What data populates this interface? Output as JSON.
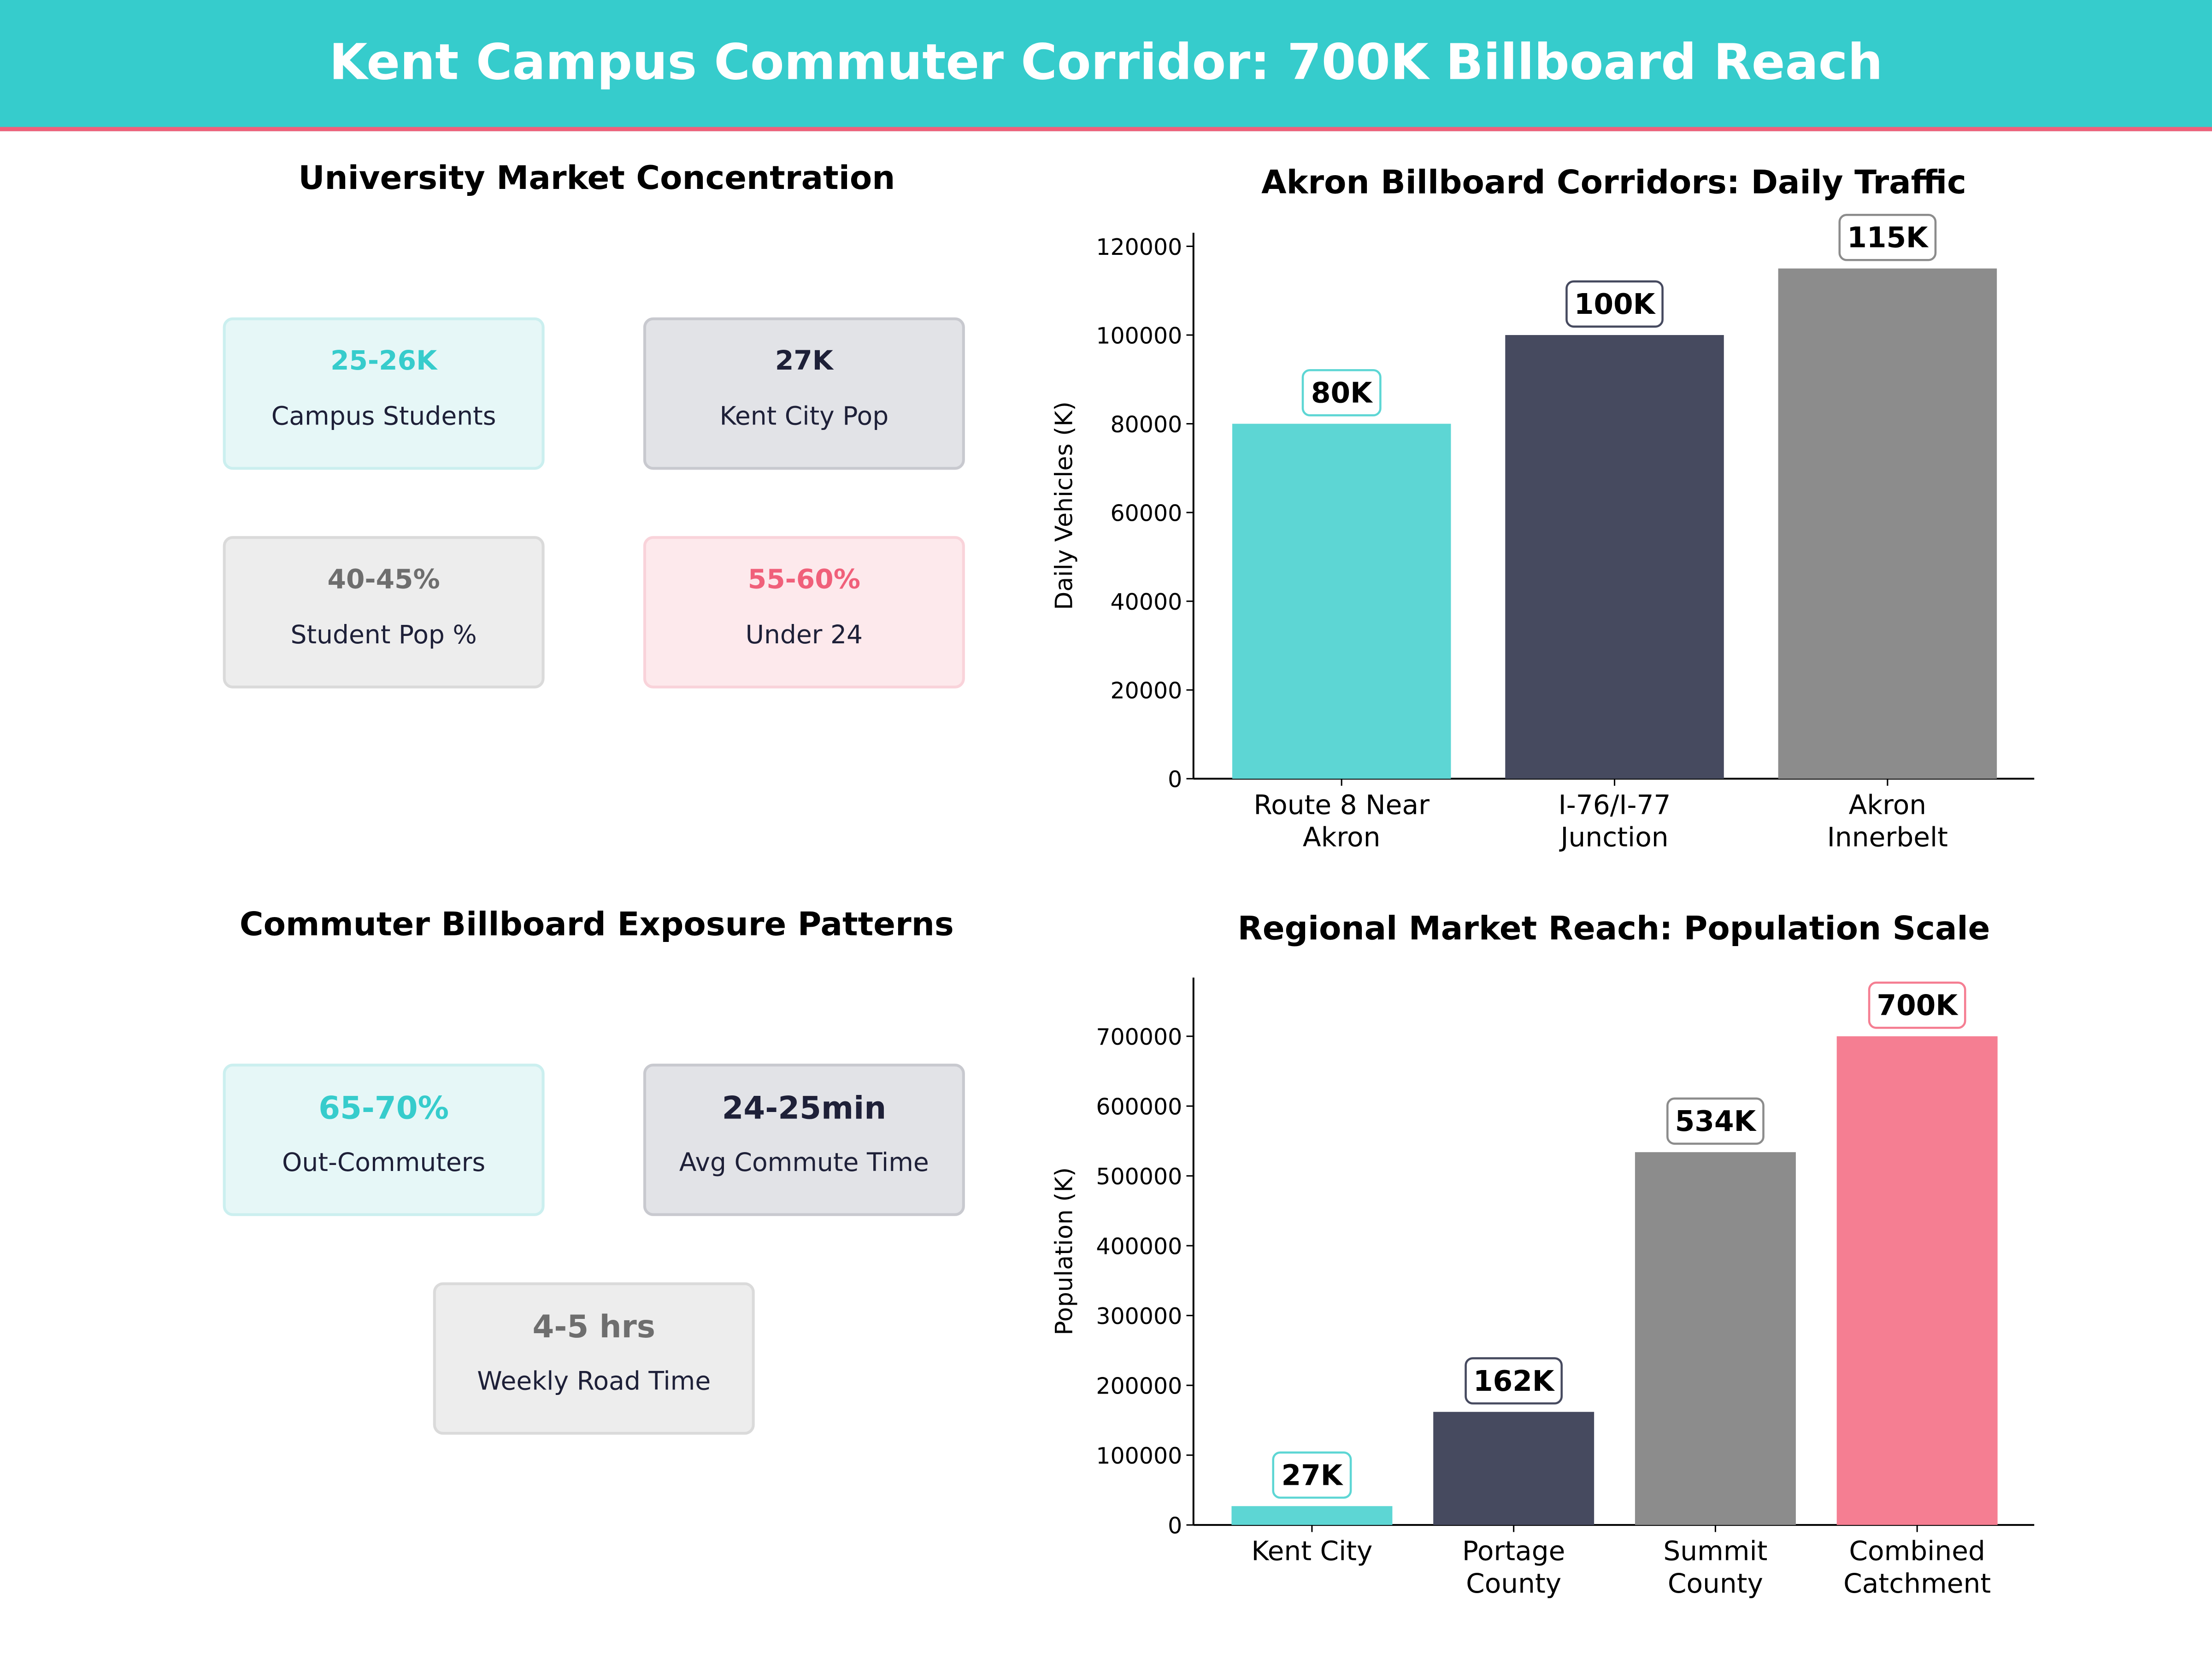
{
  "header": {
    "title": "Kent Campus Commuter Corridor: 700K Billboard Reach"
  },
  "colors": {
    "teal": "#36CCCC",
    "navy": "#1E2038",
    "gray": "#6E6E6E",
    "pink": "#F0607A"
  },
  "university": {
    "title": "University Market Concentration",
    "cards": [
      {
        "value": "25-26K",
        "label": "Campus Students"
      },
      {
        "value": "27K",
        "label": "Kent City Pop"
      },
      {
        "value": "40-45%",
        "label": "Student Pop %"
      },
      {
        "value": "55-60%",
        "label": "Under 24"
      }
    ]
  },
  "commuter": {
    "title": "Commuter Billboard Exposure Patterns",
    "cards": [
      {
        "value": "65-70%",
        "label": "Out-Commuters"
      },
      {
        "value": "24-25min",
        "label": "Avg Commute Time"
      },
      {
        "value": "4-5 hrs",
        "label": "Weekly Road Time"
      }
    ]
  },
  "chart_data": [
    {
      "type": "bar",
      "title": "Akron Billboard Corridors: Daily Traffic",
      "xlabel": "",
      "ylabel": "Daily Vehicles (K)",
      "categories": [
        "Route 8 Near\nAkron",
        "I-76/I-77\nJunction",
        "Akron\nInnerbelt"
      ],
      "values": [
        80000,
        100000,
        115000
      ],
      "data_labels": [
        "80K",
        "100K",
        "115K"
      ],
      "colors": [
        "#5DD6D4",
        "#464A5F",
        "#8C8C8C"
      ],
      "ylim": [
        0,
        123050
      ],
      "yticks": [
        0,
        20000,
        40000,
        60000,
        80000,
        100000,
        120000
      ],
      "grid": false
    },
    {
      "type": "bar",
      "title": "Regional Market Reach: Population Scale",
      "xlabel": "",
      "ylabel": "Population (K)",
      "categories": [
        "Kent City",
        "Portage\nCounty",
        "Summit\nCounty",
        "Combined\nCatchment"
      ],
      "values": [
        27000,
        162000,
        534000,
        700000
      ],
      "data_labels": [
        "27K",
        "162K",
        "534K",
        "700K"
      ],
      "colors": [
        "#5DD6D4",
        "#464A5F",
        "#8C8C8C",
        "#F57E92"
      ],
      "ylim": [
        0,
        784000
      ],
      "yticks": [
        0,
        100000,
        200000,
        300000,
        400000,
        500000,
        600000,
        700000
      ],
      "grid": false
    }
  ]
}
